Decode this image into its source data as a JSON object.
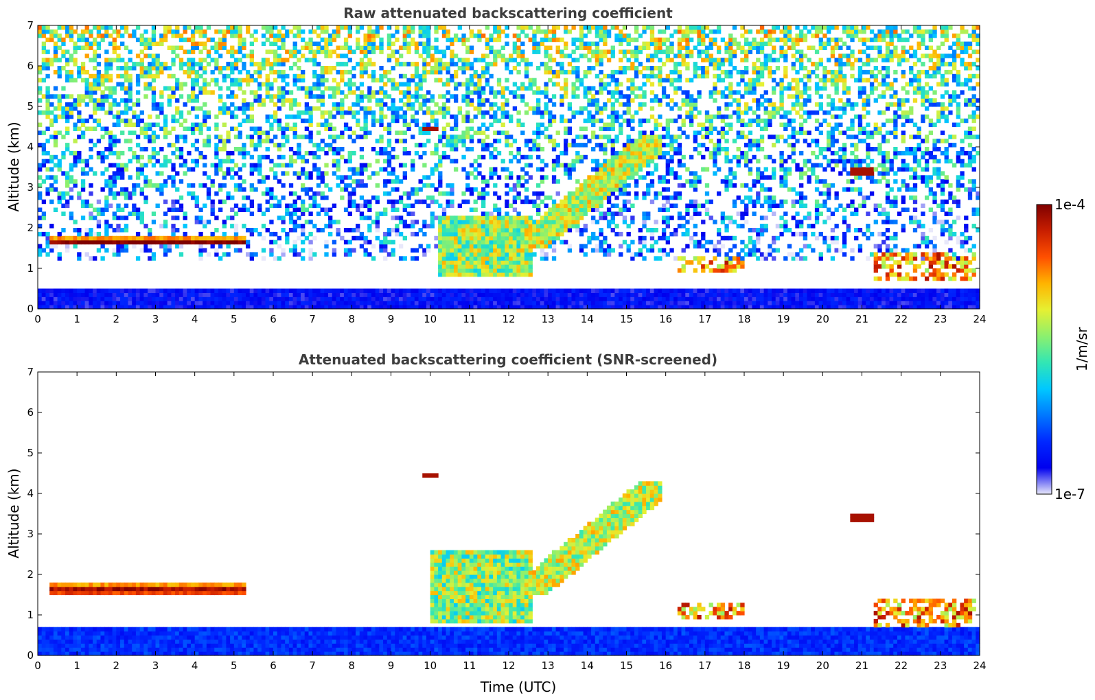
{
  "chart_data": [
    {
      "type": "heatmap",
      "title": "Raw attenuated backscattering coefficient",
      "xlabel": "",
      "ylabel": "Altitude (km)",
      "xlim": [
        0,
        24
      ],
      "ylim": [
        0,
        7
      ],
      "xticks": [
        0,
        1,
        2,
        3,
        4,
        5,
        6,
        7,
        8,
        9,
        10,
        11,
        12,
        13,
        14,
        15,
        16,
        17,
        18,
        19,
        20,
        21,
        22,
        23,
        24
      ],
      "yticks": [
        0,
        1,
        2,
        3,
        4,
        5,
        6,
        7
      ],
      "screened": false,
      "features": [
        {
          "kind": "noise_background",
          "x": [
            0,
            24
          ],
          "y": [
            1.2,
            7
          ]
        },
        {
          "kind": "blue_boundary_layer",
          "x": [
            0,
            24
          ],
          "y": [
            0,
            0.5
          ]
        },
        {
          "kind": "cloud_layer",
          "x": [
            0.3,
            5.35
          ],
          "y": [
            1.55,
            1.75
          ]
        },
        {
          "kind": "aerosol_region",
          "x": [
            10.2,
            12.6
          ],
          "y": [
            0.8,
            2.3
          ]
        },
        {
          "kind": "aerosol_slope",
          "x": [
            12.4,
            15.9
          ],
          "y": [
            1.5,
            4.3
          ]
        },
        {
          "kind": "cloud_patch",
          "x": [
            9.8,
            10.2
          ],
          "y": [
            4.38,
            4.46
          ]
        },
        {
          "kind": "cloud_patch",
          "x": [
            20.7,
            21.3
          ],
          "y": [
            3.35,
            3.45
          ]
        },
        {
          "kind": "low_clouds",
          "x": [
            16.3,
            18.0
          ],
          "y": [
            0.9,
            1.3
          ]
        },
        {
          "kind": "low_clouds",
          "x": [
            21.3,
            23.9
          ],
          "y": [
            0.7,
            1.4
          ]
        }
      ]
    },
    {
      "type": "heatmap",
      "title": "Attenuated backscattering coefficient (SNR-screened)",
      "xlabel": "Time (UTC)",
      "ylabel": "Altitude (km)",
      "xlim": [
        0,
        24
      ],
      "ylim": [
        0,
        7
      ],
      "xticks": [
        0,
        1,
        2,
        3,
        4,
        5,
        6,
        7,
        8,
        9,
        10,
        11,
        12,
        13,
        14,
        15,
        16,
        17,
        18,
        19,
        20,
        21,
        22,
        23,
        24
      ],
      "yticks": [
        0,
        1,
        2,
        3,
        4,
        5,
        6,
        7
      ],
      "screened": true,
      "features": [
        {
          "kind": "blue_boundary_layer",
          "x": [
            0,
            24
          ],
          "y": [
            0,
            0.7
          ]
        },
        {
          "kind": "cloud_layer",
          "x": [
            0.3,
            5.35
          ],
          "y": [
            1.5,
            1.75
          ]
        },
        {
          "kind": "aerosol_region",
          "x": [
            10.0,
            12.6
          ],
          "y": [
            0.8,
            2.6
          ]
        },
        {
          "kind": "aerosol_slope",
          "x": [
            12.4,
            15.9
          ],
          "y": [
            1.5,
            4.3
          ]
        },
        {
          "kind": "cloud_patch",
          "x": [
            9.8,
            10.2
          ],
          "y": [
            4.38,
            4.46
          ]
        },
        {
          "kind": "cloud_patch",
          "x": [
            20.7,
            21.3
          ],
          "y": [
            3.35,
            3.45
          ]
        },
        {
          "kind": "low_clouds",
          "x": [
            16.3,
            18.0
          ],
          "y": [
            0.9,
            1.3
          ]
        },
        {
          "kind": "low_clouds",
          "x": [
            21.3,
            23.9
          ],
          "y": [
            0.7,
            1.4
          ]
        }
      ]
    }
  ],
  "colorbar": {
    "label": "1/m/sr",
    "max_label": "1e-4",
    "min_label": "1e-7",
    "colors": [
      "#7f0000",
      "#c81e00",
      "#ff5000",
      "#ffb400",
      "#e6f032",
      "#8cf06e",
      "#32e6b4",
      "#00c8ff",
      "#0078ff",
      "#0028ff",
      "#0000ee",
      "#e8e8fa"
    ]
  }
}
